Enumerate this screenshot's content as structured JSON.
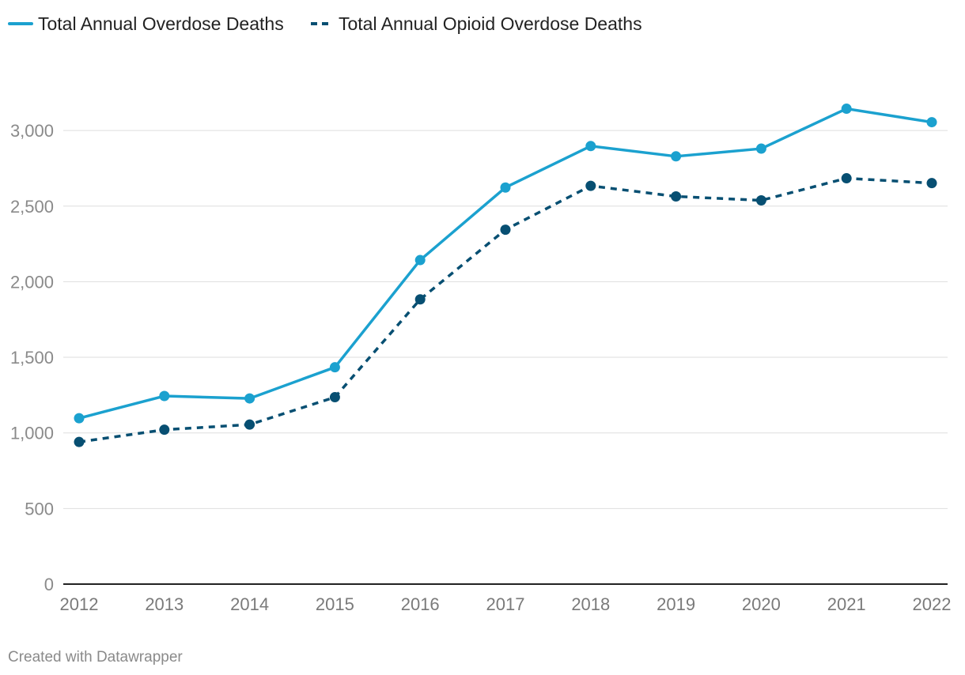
{
  "chart_data": {
    "type": "line",
    "title": "",
    "xlabel": "",
    "ylabel": "",
    "x": [
      2012,
      2013,
      2014,
      2015,
      2016,
      2017,
      2018,
      2019,
      2020,
      2021,
      2022
    ],
    "x_tick_labels": [
      "2012",
      "2013",
      "2014",
      "2015",
      "2016",
      "2017",
      "2018",
      "2019",
      "2020",
      "2021",
      "2022"
    ],
    "ylim": [
      0,
      3000
    ],
    "y_ticks": [
      0,
      500,
      1000,
      1500,
      2000,
      2500,
      3000
    ],
    "y_tick_labels": [
      "0",
      "500",
      "1,000",
      "1,500",
      "2,000",
      "2,500",
      "3,000"
    ],
    "grid": true,
    "legend_position": "top-left",
    "series": [
      {
        "name": "Total Annual Overdose Deaths",
        "style": "solid",
        "color": "#1ba1cf",
        "values": [
          1097,
          1244,
          1228,
          1434,
          2143,
          2623,
          2897,
          2829,
          2880,
          3144,
          3055
        ]
      },
      {
        "name": "Total Annual Opioid Overdose Deaths",
        "style": "dashed",
        "color": "#074f72",
        "values": [
          940,
          1021,
          1055,
          1236,
          1883,
          2344,
          2634,
          2564,
          2538,
          2684,
          2652
        ]
      }
    ],
    "footer": "Created with Datawrapper"
  }
}
